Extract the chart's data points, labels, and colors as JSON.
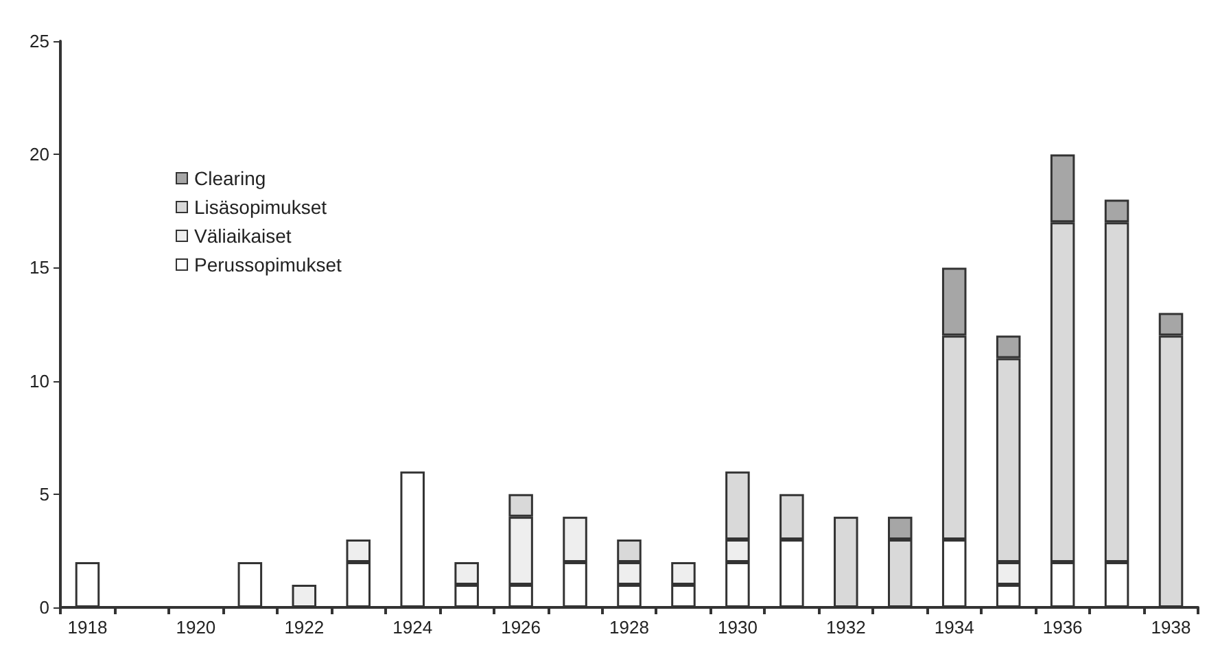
{
  "chart_data": {
    "type": "bar",
    "stacked": true,
    "categories": [
      "1918",
      null,
      "1920",
      null,
      "1922",
      null,
      "1924",
      null,
      "1926",
      null,
      "1928",
      null,
      "1930",
      null,
      "1932",
      null,
      "1934",
      null,
      "1936",
      null,
      "1938"
    ],
    "series": [
      {
        "name": "Perussopimukset",
        "color": "#ffffff",
        "values": [
          2,
          0,
          0,
          2,
          0,
          2,
          6,
          1,
          1,
          2,
          1,
          1,
          2,
          3,
          0,
          0,
          3,
          1,
          2,
          2,
          0
        ]
      },
      {
        "name": "Väliaikaiset",
        "color": "#eeeeee",
        "values": [
          0,
          0,
          0,
          0,
          1,
          1,
          0,
          1,
          3,
          2,
          1,
          1,
          1,
          0,
          0,
          0,
          0,
          1,
          0,
          0,
          0
        ]
      },
      {
        "name": "Lisäsopimukset",
        "color": "#d9d9d9",
        "values": [
          0,
          0,
          0,
          0,
          0,
          0,
          0,
          0,
          1,
          0,
          1,
          0,
          3,
          2,
          4,
          3,
          9,
          9,
          15,
          15,
          12
        ]
      },
      {
        "name": "Clearing",
        "color": "#a6a6a6",
        "values": [
          0,
          0,
          0,
          0,
          0,
          0,
          0,
          0,
          0,
          0,
          0,
          0,
          0,
          0,
          0,
          1,
          3,
          1,
          3,
          1,
          1
        ]
      }
    ],
    "ylim": [
      0,
      25
    ],
    "yticks": [
      0,
      5,
      10,
      15,
      20,
      25
    ],
    "grid": false,
    "legend": "top left"
  }
}
